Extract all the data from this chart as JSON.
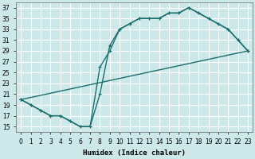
{
  "xlabel": "Humidex (Indice chaleur)",
  "xlim": [
    -0.5,
    23.5
  ],
  "ylim": [
    14,
    38
  ],
  "xticks": [
    0,
    1,
    2,
    3,
    4,
    5,
    6,
    7,
    8,
    9,
    10,
    11,
    12,
    13,
    14,
    15,
    16,
    17,
    18,
    19,
    20,
    21,
    22,
    23
  ],
  "yticks": [
    15,
    17,
    19,
    21,
    23,
    25,
    27,
    29,
    31,
    33,
    35,
    37
  ],
  "bg_color": "#cde8e8",
  "grid_color": "#b0d4d4",
  "line_color": "#1a6e6e",
  "curve1_x": [
    0,
    1,
    2,
    3,
    4,
    5,
    6,
    7,
    8,
    9,
    10,
    11,
    12,
    13,
    14,
    15,
    16,
    17,
    18,
    19,
    20,
    21,
    22,
    23
  ],
  "curve1_y": [
    20,
    19,
    18,
    17,
    17,
    16,
    15,
    15,
    21,
    30,
    33,
    34,
    35,
    35,
    35,
    36,
    36,
    37,
    36,
    35,
    34,
    33,
    31,
    29
  ],
  "curve2_x": [
    0,
    1,
    2,
    3,
    4,
    5,
    6,
    7,
    8,
    9,
    10,
    11,
    12,
    13,
    14,
    15,
    16,
    17,
    18,
    19,
    20,
    21,
    22,
    23
  ],
  "curve2_y": [
    20,
    19,
    18,
    17,
    17,
    16,
    15,
    15,
    26,
    29,
    33,
    34,
    35,
    35,
    35,
    36,
    36,
    37,
    36,
    35,
    34,
    33,
    31,
    29
  ],
  "curve3_x": [
    0,
    23
  ],
  "curve3_y": [
    20,
    29
  ],
  "xlabel_fontsize": 6.5,
  "tick_fontsize": 5.5,
  "lw": 1.0,
  "ms": 2.5
}
